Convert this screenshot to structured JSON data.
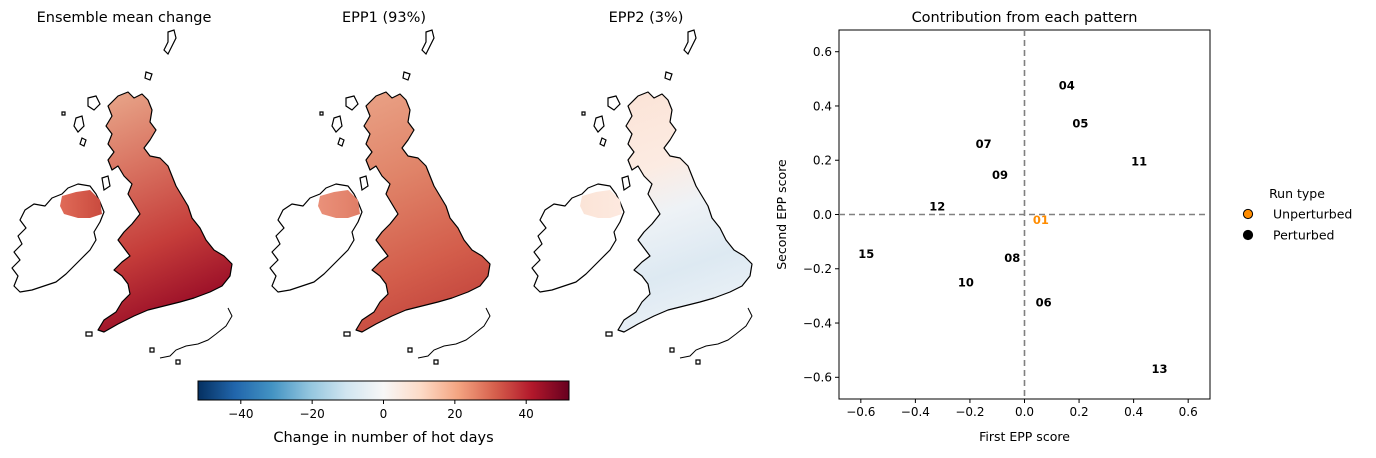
{
  "maps": [
    {
      "title": "Ensemble mean change",
      "style": "mean"
    },
    {
      "title": "EPP1 (93%)",
      "style": "epp1"
    },
    {
      "title": "EPP2 (3%)",
      "style": "epp2"
    }
  ],
  "colorbar": {
    "label": "Change in number of hot days",
    "range": [
      -52,
      52
    ],
    "ticks": [
      -40,
      -20,
      0,
      20,
      40
    ],
    "tick_labels": [
      "−40",
      "−20",
      "0",
      "20",
      "40"
    ],
    "colormap": [
      "#053061",
      "#2166ac",
      "#4393c3",
      "#92c5de",
      "#d1e5f0",
      "#f7f7f7",
      "#fddbc7",
      "#f4a582",
      "#d6604d",
      "#b2182b",
      "#67001f"
    ]
  },
  "chart_data": {
    "type": "scatter",
    "title": "Contribution from each pattern",
    "xlabel": "First EPP score",
    "ylabel": "Second EPP score",
    "xlim": [
      -0.68,
      0.68
    ],
    "ylim": [
      -0.68,
      0.68
    ],
    "xticks": [
      -0.6,
      -0.4,
      -0.2,
      0.0,
      0.2,
      0.4,
      0.6
    ],
    "xtick_labels": [
      "−0.6",
      "−0.4",
      "−0.2",
      "0.0",
      "0.2",
      "0.4",
      "0.6"
    ],
    "yticks": [
      -0.6,
      -0.4,
      -0.2,
      0.0,
      0.2,
      0.4,
      0.6
    ],
    "ytick_labels": [
      "−0.6",
      "−0.4",
      "−0.2",
      "0.0",
      "0.2",
      "0.4",
      "0.6"
    ],
    "grid": false,
    "reference_lines": {
      "x": 0,
      "y": 0,
      "style": "dashed",
      "color": "#808080"
    },
    "points": [
      {
        "label": "01",
        "x": 0.06,
        "y": -0.02,
        "run_type": "Unperturbed"
      },
      {
        "label": "04",
        "x": 0.155,
        "y": 0.475,
        "run_type": "Perturbed"
      },
      {
        "label": "05",
        "x": 0.205,
        "y": 0.335,
        "run_type": "Perturbed"
      },
      {
        "label": "06",
        "x": 0.07,
        "y": -0.325,
        "run_type": "Perturbed"
      },
      {
        "label": "07",
        "x": -0.15,
        "y": 0.26,
        "run_type": "Perturbed"
      },
      {
        "label": "08",
        "x": -0.045,
        "y": -0.16,
        "run_type": "Perturbed"
      },
      {
        "label": "09",
        "x": -0.09,
        "y": 0.145,
        "run_type": "Perturbed"
      },
      {
        "label": "10",
        "x": -0.215,
        "y": -0.25,
        "run_type": "Perturbed"
      },
      {
        "label": "11",
        "x": 0.42,
        "y": 0.195,
        "run_type": "Perturbed"
      },
      {
        "label": "12",
        "x": -0.32,
        "y": 0.03,
        "run_type": "Perturbed"
      },
      {
        "label": "13",
        "x": 0.495,
        "y": -0.57,
        "run_type": "Perturbed"
      },
      {
        "label": "15",
        "x": -0.58,
        "y": -0.145,
        "run_type": "Perturbed"
      }
    ],
    "legend": {
      "title": "Run type",
      "placement": "right",
      "entries": [
        {
          "label": "Unperturbed",
          "color": "#ff8c00"
        },
        {
          "label": "Perturbed",
          "color": "#000000"
        }
      ]
    }
  }
}
